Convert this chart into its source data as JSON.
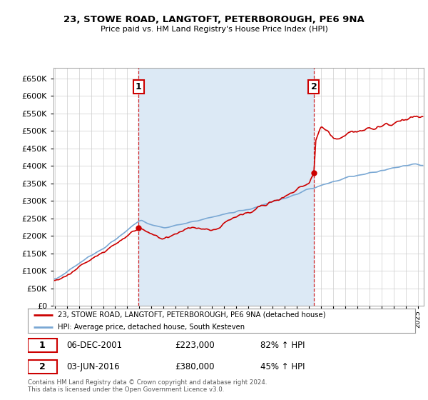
{
  "title": "23, STOWE ROAD, LANGTOFT, PETERBOROUGH, PE6 9NA",
  "subtitle": "Price paid vs. HM Land Registry's House Price Index (HPI)",
  "legend_line1": "23, STOWE ROAD, LANGTOFT, PETERBOROUGH, PE6 9NA (detached house)",
  "legend_line2": "HPI: Average price, detached house, South Kesteven",
  "annotation1_date": "06-DEC-2001",
  "annotation1_price": "£223,000",
  "annotation1_hpi": "82% ↑ HPI",
  "annotation2_date": "03-JUN-2016",
  "annotation2_price": "£380,000",
  "annotation2_hpi": "45% ↑ HPI",
  "footer": "Contains HM Land Registry data © Crown copyright and database right 2024.\nThis data is licensed under the Open Government Licence v3.0.",
  "price_color": "#cc0000",
  "hpi_color": "#7aa8d4",
  "vline_color": "#cc0000",
  "shade_color": "#dce9f5",
  "ylim": [
    0,
    680000
  ],
  "yticks": [
    0,
    50000,
    100000,
    150000,
    200000,
    250000,
    300000,
    350000,
    400000,
    450000,
    500000,
    550000,
    600000,
    650000
  ],
  "sale1_year": 2001.92,
  "sale1_value": 223000,
  "sale2_year": 2016.42,
  "sale2_value": 380000,
  "background_color": "#ffffff",
  "grid_color": "#cccccc"
}
